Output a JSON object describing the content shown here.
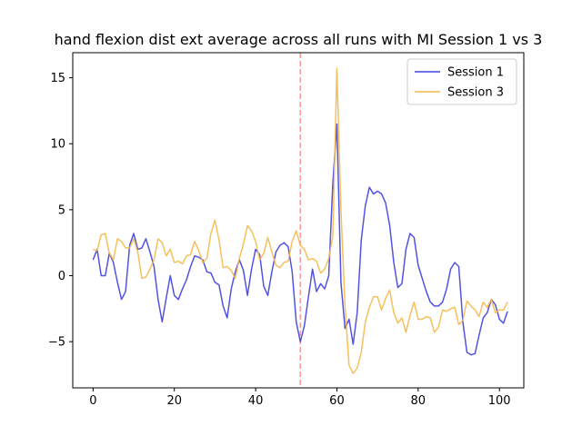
{
  "chart_data": {
    "type": "line",
    "title": "hand flexion dist ext average across all runs with MI Session 1 vs 3",
    "xlabel": "",
    "ylabel": "",
    "xlim": [
      -5,
      106
    ],
    "ylim": [
      -8.5,
      16.9
    ],
    "xticks": [
      0,
      20,
      40,
      60,
      80,
      100
    ],
    "yticks": [
      -5,
      0,
      5,
      10,
      15
    ],
    "grid": false,
    "legend_position": "upper-right",
    "vline": {
      "x": 51,
      "color": "#ff9999",
      "style": "dashed"
    },
    "series": [
      {
        "name": "Session 1",
        "color": "#4040e0",
        "values": [
          1.2,
          2.0,
          0.0,
          0.0,
          1.7,
          1.0,
          -0.5,
          -1.8,
          -1.2,
          2.3,
          3.2,
          2.0,
          2.1,
          2.8,
          1.8,
          0.7,
          -1.8,
          -3.5,
          -1.7,
          0.0,
          -1.5,
          -1.8,
          -1.0,
          -0.3,
          0.7,
          1.5,
          1.4,
          1.2,
          0.3,
          0.2,
          -0.5,
          -0.7,
          -2.3,
          -3.2,
          -1.0,
          0.3,
          1.2,
          0.4,
          -1.5,
          0.5,
          2.0,
          1.6,
          -0.8,
          -1.5,
          0.3,
          1.8,
          2.3,
          2.5,
          2.2,
          0.3,
          -3.5,
          -5.0,
          -3.8,
          -1.6,
          0.5,
          -1.2,
          -0.6,
          -1.0,
          0.0,
          7.0,
          11.5,
          -0.5,
          -4.0,
          -3.3,
          -5.2,
          -2.8,
          2.7,
          5.3,
          6.7,
          6.2,
          6.4,
          6.2,
          5.5,
          3.8,
          1.0,
          -0.9,
          -0.6,
          2.0,
          3.2,
          2.9,
          0.8,
          -0.2,
          -1.2,
          -2.0,
          -2.3,
          -2.3,
          -2.0,
          -1.0,
          0.5,
          1.0,
          0.7,
          -3.5,
          -5.8,
          -6.0,
          -5.9,
          -4.5,
          -3.2,
          -2.8,
          -1.8,
          -2.2,
          -3.3,
          -3.6,
          -2.7
        ]
      },
      {
        "name": "Session 3",
        "color": "#f5b94a",
        "values": [
          2.0,
          1.9,
          3.1,
          3.2,
          1.7,
          1.2,
          2.8,
          2.6,
          2.1,
          2.1,
          2.8,
          1.8,
          -0.2,
          -0.1,
          0.5,
          1.2,
          2.8,
          2.5,
          1.5,
          2.0,
          1.0,
          1.1,
          0.9,
          1.5,
          1.6,
          2.6,
          1.9,
          1.0,
          1.3,
          3.2,
          4.2,
          2.7,
          0.6,
          0.7,
          0.4,
          -0.2,
          1.3,
          2.4,
          3.8,
          3.4,
          2.6,
          1.2,
          1.7,
          2.9,
          1.8,
          0.8,
          0.6,
          1.0,
          1.1,
          2.6,
          3.4,
          2.3,
          2.0,
          1.2,
          1.3,
          1.1,
          0.2,
          0.5,
          1.3,
          3.0,
          15.7,
          5.0,
          -2.3,
          -6.8,
          -7.4,
          -7.0,
          -5.8,
          -3.5,
          -2.4,
          -1.6,
          -1.6,
          -2.6,
          -1.7,
          -1.1,
          -2.8,
          -3.6,
          -3.2,
          -4.3,
          -3.0,
          -2.0,
          -3.3,
          -3.3,
          -3.1,
          -3.2,
          -4.3,
          -3.9,
          -2.6,
          -2.7,
          -2.5,
          -2.4,
          -3.7,
          -3.4,
          -1.9,
          -2.3,
          -2.6,
          -3.1,
          -2.0,
          -2.4,
          -1.8,
          -2.8,
          -2.6,
          -2.6,
          -2.0
        ]
      }
    ]
  }
}
